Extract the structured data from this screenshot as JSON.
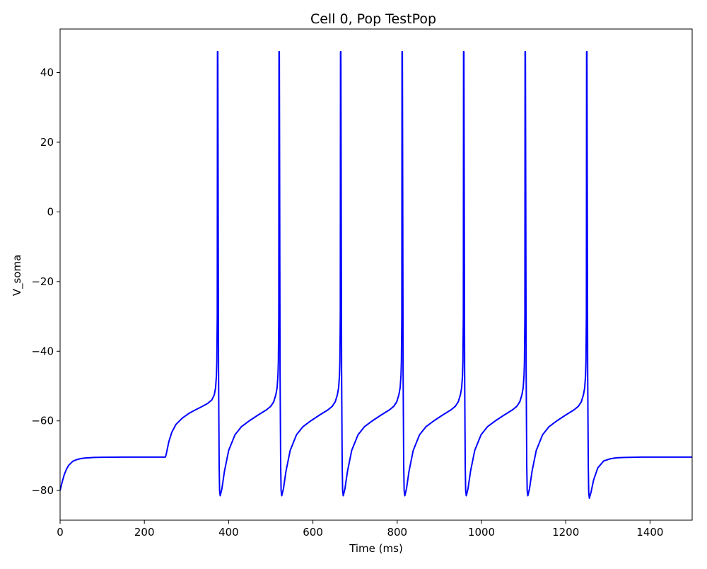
{
  "chart_data": {
    "type": "line",
    "title": "Cell 0, Pop TestPop",
    "xlabel": "Time (ms)",
    "ylabel": "V_soma",
    "xlim": [
      0,
      1500
    ],
    "ylim": [
      -88.5,
      52.5
    ],
    "xticks": [
      0,
      200,
      400,
      600,
      800,
      1000,
      1200,
      1400
    ],
    "yticks": [
      -80,
      -60,
      -40,
      -20,
      0,
      20,
      40
    ],
    "xtick_labels": [
      "0",
      "200",
      "400",
      "600",
      "800",
      "1000",
      "1200",
      "1400"
    ],
    "ytick_labels": [
      "−80",
      "−60",
      "−40",
      "−20",
      "0",
      "20",
      "40"
    ],
    "grid": false,
    "line_color": "#0000ff",
    "series": [
      {
        "x": [
          0,
          5,
          10,
          15,
          20,
          30,
          40,
          50,
          60,
          80,
          100,
          150,
          200,
          250,
          252,
          258,
          265,
          275,
          290,
          305,
          320,
          335,
          350,
          360,
          366,
          369,
          371,
          372,
          373,
          373.5,
          374.3,
          375,
          376,
          377.5,
          378.5,
          380,
          384,
          390,
          400,
          415,
          430,
          450,
          470,
          490,
          500,
          507,
          512,
          515,
          517,
          518,
          519,
          519.5,
          520.3,
          521,
          522,
          523.5,
          524.5,
          526,
          530,
          536,
          546,
          561,
          576,
          596,
          616,
          636,
          646,
          653,
          658,
          661,
          663,
          664,
          665,
          665.5,
          666.3,
          667,
          668,
          669.5,
          670.5,
          672,
          676,
          682,
          692,
          707,
          722,
          742,
          762,
          782,
          792,
          799,
          804,
          807,
          809,
          810,
          811,
          811.5,
          812.3,
          813,
          814,
          815.5,
          816.5,
          818,
          822,
          828,
          838,
          853,
          868,
          888,
          908,
          928,
          938,
          945,
          950,
          953,
          955,
          956,
          957,
          957.5,
          958.3,
          959,
          960,
          961.5,
          962.5,
          964,
          968,
          974,
          984,
          999,
          1014,
          1034,
          1054,
          1074,
          1084,
          1091,
          1096,
          1099,
          1101,
          1102,
          1103,
          1103.5,
          1104.3,
          1105,
          1106,
          1107.5,
          1108.5,
          1110,
          1114,
          1120,
          1130,
          1145,
          1160,
          1180,
          1200,
          1220,
          1230,
          1237,
          1242,
          1245,
          1247,
          1248,
          1249,
          1249.5,
          1250.3,
          1251,
          1252,
          1253.5,
          1254.5,
          1256,
          1260,
          1266,
          1276,
          1290,
          1305,
          1320,
          1340,
          1360,
          1380,
          1400,
          1450,
          1500
        ],
        "y": [
          -80,
          -77.5,
          -75.4,
          -73.9,
          -72.8,
          -71.6,
          -71.1,
          -70.8,
          -70.65,
          -70.5,
          -70.45,
          -70.4,
          -70.4,
          -70.4,
          -69.5,
          -66,
          -63.3,
          -61,
          -59.2,
          -57.9,
          -56.9,
          -56,
          -55,
          -54,
          -52.5,
          -50.5,
          -47,
          -43,
          -30,
          46,
          46,
          10,
          -45,
          -73,
          -80,
          -81.5,
          -79.5,
          -74.5,
          -68.5,
          -64,
          -61.7,
          -59.9,
          -58.3,
          -56.8,
          -55.8,
          -54.5,
          -52.5,
          -50.5,
          -47,
          -43,
          -30,
          46,
          46,
          10,
          -45,
          -73,
          -80,
          -81.5,
          -79.5,
          -74.5,
          -68.5,
          -64,
          -61.7,
          -59.9,
          -58.3,
          -56.8,
          -55.8,
          -54.5,
          -52.5,
          -50.5,
          -47,
          -43,
          -30,
          46,
          46,
          10,
          -45,
          -73,
          -80,
          -81.5,
          -79.5,
          -74.5,
          -68.5,
          -64,
          -61.7,
          -59.9,
          -58.3,
          -56.8,
          -55.8,
          -54.5,
          -52.5,
          -50.5,
          -47,
          -43,
          -30,
          46,
          46,
          10,
          -45,
          -73,
          -80,
          -81.5,
          -79.5,
          -74.5,
          -68.5,
          -64,
          -61.7,
          -59.9,
          -58.3,
          -56.8,
          -55.8,
          -54.5,
          -52.5,
          -50.5,
          -47,
          -43,
          -30,
          46,
          46,
          10,
          -45,
          -73,
          -80,
          -81.5,
          -79.5,
          -74.5,
          -68.5,
          -64,
          -61.7,
          -59.9,
          -58.3,
          -56.8,
          -55.8,
          -54.5,
          -52.5,
          -50.5,
          -47,
          -43,
          -30,
          46,
          46,
          10,
          -45,
          -73,
          -80,
          -81.5,
          -79.5,
          -74.5,
          -68.5,
          -64,
          -61.7,
          -59.9,
          -58.3,
          -56.8,
          -55.8,
          -54.5,
          -52.5,
          -50.5,
          -47,
          -43,
          -30,
          46,
          46,
          10,
          -45,
          -73,
          -80.5,
          -82.2,
          -80.5,
          -77,
          -73.5,
          -71.5,
          -70.9,
          -70.6,
          -70.5,
          -70.45,
          -70.4,
          -70.4,
          -70.4,
          -70.4
        ]
      }
    ]
  }
}
